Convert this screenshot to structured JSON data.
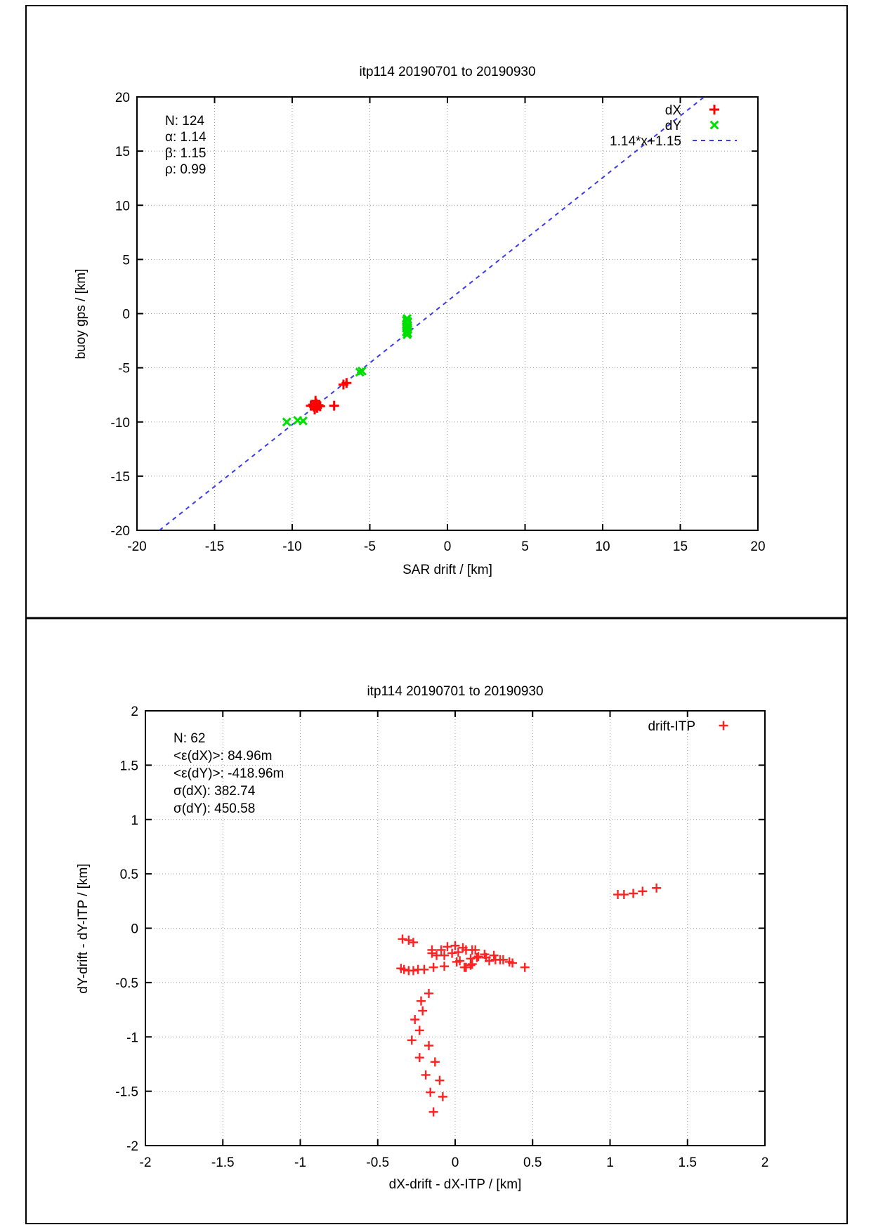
{
  "frame": {
    "color": "#000000"
  },
  "chart_data": [
    {
      "type": "scatter",
      "title": "itp114 20190701 to 20190930",
      "xlabel": "SAR drift / [km]",
      "ylabel": "buoy gps / [km]",
      "xlim": [
        -20,
        20
      ],
      "ylim": [
        -20,
        20
      ],
      "xticks": [
        -20,
        -15,
        -10,
        -5,
        0,
        5,
        10,
        15,
        20
      ],
      "yticks": [
        -20,
        -15,
        -10,
        -5,
        0,
        5,
        10,
        15,
        20
      ],
      "xtick_labels": [
        "-20",
        "-15",
        "-10",
        "-5",
        "0",
        "5",
        "10",
        "15",
        "20"
      ],
      "ytick_labels": [
        "-20",
        "-15",
        "-10",
        "-5",
        "0",
        "5",
        "10",
        "15",
        "20"
      ],
      "grid": true,
      "stats_lines": [
        "N: 124",
        "α: 1.14",
        "β: 1.15",
        "ρ: 0.99"
      ],
      "legend_position": "top-right",
      "series": [
        {
          "name": "dX",
          "marker": "plus",
          "color": "#ff0000",
          "points": [
            [
              -8.8,
              -8.5
            ],
            [
              -8.65,
              -8.4
            ],
            [
              -8.6,
              -8.6
            ],
            [
              -8.5,
              -8.5
            ],
            [
              -8.45,
              -8.3
            ],
            [
              -8.4,
              -8.7
            ],
            [
              -8.3,
              -8.45
            ],
            [
              -8.2,
              -8.55
            ],
            [
              -8.5,
              -8.05
            ],
            [
              -8.55,
              -8.85
            ],
            [
              -7.3,
              -8.5
            ],
            [
              -6.7,
              -6.55
            ],
            [
              -6.5,
              -6.4
            ]
          ]
        },
        {
          "name": "dY",
          "marker": "cross",
          "color": "#00e000",
          "points": [
            [
              -10.35,
              -10.0
            ],
            [
              -9.65,
              -9.85
            ],
            [
              -9.3,
              -9.9
            ],
            [
              -5.65,
              -5.4
            ],
            [
              -5.5,
              -5.3
            ],
            [
              -2.6,
              -0.45
            ],
            [
              -2.65,
              -0.62
            ],
            [
              -2.55,
              -0.74
            ],
            [
              -2.6,
              -0.86
            ],
            [
              -2.65,
              -0.98
            ],
            [
              -2.55,
              -1.1
            ],
            [
              -2.6,
              -1.22
            ],
            [
              -2.65,
              -1.34
            ],
            [
              -2.55,
              -1.46
            ],
            [
              -2.6,
              -1.58
            ],
            [
              -2.65,
              -1.7
            ],
            [
              -2.55,
              -1.82
            ],
            [
              -2.6,
              -1.95
            ]
          ]
        }
      ],
      "fit_line": {
        "label": "1.14*x+1.15",
        "slope": 1.14,
        "intercept": 1.15,
        "color": "#3a3aee",
        "style": "dashed"
      }
    },
    {
      "type": "scatter",
      "title": "itp114 20190701 to 20190930",
      "xlabel": "dX-drift - dX-ITP / [km]",
      "ylabel": "dY-drift - dY-ITP / [km]",
      "xlim": [
        -2,
        2
      ],
      "ylim": [
        -2,
        2
      ],
      "xticks": [
        -2,
        -1.5,
        -1,
        -0.5,
        0,
        0.5,
        1,
        1.5,
        2
      ],
      "yticks": [
        -2,
        -1.5,
        -1,
        -0.5,
        0,
        0.5,
        1,
        1.5,
        2
      ],
      "xtick_labels": [
        "-2",
        "-1.5",
        "-1",
        "-0.5",
        "0",
        "0.5",
        "1",
        "1.5",
        "2"
      ],
      "ytick_labels": [
        "-2",
        "-1.5",
        "-1",
        "-0.5",
        "0",
        "0.5",
        "1",
        "1.5",
        "2"
      ],
      "grid": true,
      "stats_lines": [
        "N: 62",
        "<ε(dX)>:  84.96m",
        "<ε(dY)>: -418.96m",
        "σ(dX):  382.74",
        "σ(dY):  450.58"
      ],
      "legend_position": "top-right",
      "series": [
        {
          "name": "drift-ITP",
          "marker": "plus",
          "color": "#ff2222",
          "points": [
            [
              1.05,
              0.31
            ],
            [
              1.09,
              0.31
            ],
            [
              1.15,
              0.32
            ],
            [
              1.21,
              0.34
            ],
            [
              1.3,
              0.37
            ],
            [
              -0.34,
              -0.1
            ],
            [
              -0.3,
              -0.11
            ],
            [
              -0.27,
              -0.13
            ],
            [
              -0.15,
              -0.2
            ],
            [
              -0.15,
              -0.23
            ],
            [
              -0.12,
              -0.25
            ],
            [
              -0.09,
              -0.2
            ],
            [
              -0.07,
              -0.25
            ],
            [
              -0.05,
              -0.17
            ],
            [
              -0.02,
              -0.23
            ],
            [
              0.0,
              -0.16
            ],
            [
              0.02,
              -0.22
            ],
            [
              0.05,
              -0.18
            ],
            [
              0.07,
              -0.2
            ],
            [
              0.11,
              -0.2
            ],
            [
              0.13,
              -0.2
            ],
            [
              0.15,
              -0.26
            ],
            [
              0.19,
              -0.24
            ],
            [
              0.2,
              -0.27
            ],
            [
              0.22,
              -0.3
            ],
            [
              0.25,
              -0.25
            ],
            [
              0.26,
              -0.29
            ],
            [
              0.29,
              -0.29
            ],
            [
              0.31,
              -0.29
            ],
            [
              0.35,
              -0.31
            ],
            [
              0.37,
              -0.32
            ],
            [
              0.45,
              -0.36
            ],
            [
              -0.35,
              -0.37
            ],
            [
              -0.33,
              -0.38
            ],
            [
              -0.3,
              -0.39
            ],
            [
              -0.27,
              -0.39
            ],
            [
              -0.24,
              -0.38
            ],
            [
              -0.2,
              -0.38
            ],
            [
              -0.14,
              -0.36
            ],
            [
              -0.07,
              -0.35
            ],
            [
              0.01,
              -0.31
            ],
            [
              0.03,
              -0.3
            ],
            [
              0.06,
              -0.36
            ],
            [
              0.07,
              -0.36
            ],
            [
              0.1,
              -0.34
            ],
            [
              0.11,
              -0.33
            ],
            [
              0.14,
              -0.27
            ],
            [
              0.1,
              -0.28
            ],
            [
              -0.17,
              -0.6
            ],
            [
              -0.22,
              -0.67
            ],
            [
              -0.21,
              -0.76
            ],
            [
              -0.26,
              -0.84
            ],
            [
              -0.23,
              -0.94
            ],
            [
              -0.28,
              -1.03
            ],
            [
              -0.17,
              -1.08
            ],
            [
              -0.23,
              -1.19
            ],
            [
              -0.13,
              -1.23
            ],
            [
              -0.19,
              -1.35
            ],
            [
              -0.1,
              -1.4
            ],
            [
              -0.16,
              -1.51
            ],
            [
              -0.08,
              -1.55
            ],
            [
              -0.14,
              -1.69
            ]
          ]
        }
      ]
    }
  ]
}
